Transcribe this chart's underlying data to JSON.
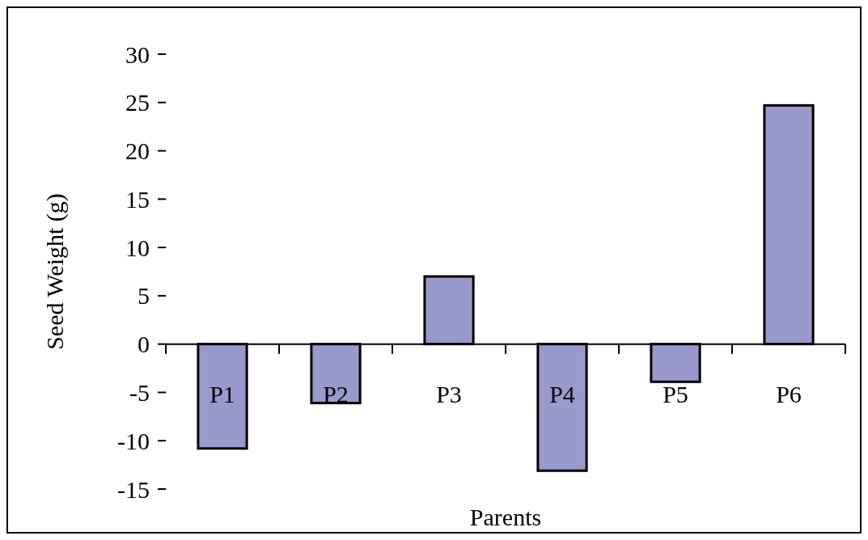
{
  "chart_data": {
    "type": "bar",
    "xlabel": "Parents",
    "ylabel": "Seed Weight (g)",
    "categories": [
      "P1",
      "P2",
      "P3",
      "P4",
      "P5",
      "P6"
    ],
    "values": [
      -10.8,
      -6.1,
      7.0,
      -13.1,
      -3.9,
      24.7
    ],
    "color": "#9999cc",
    "ylim": [
      -15,
      30
    ],
    "yticks": [
      -15,
      -10,
      -5,
      0,
      5,
      10,
      15,
      20,
      25,
      30
    ]
  }
}
